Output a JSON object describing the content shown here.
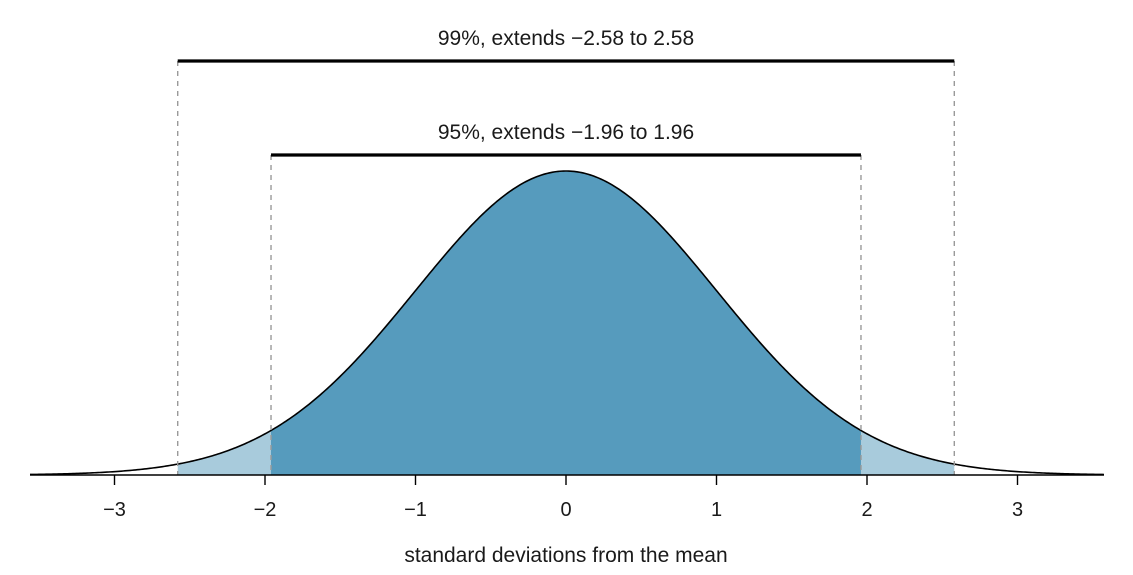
{
  "chart_data": {
    "type": "area",
    "distribution": "standard normal",
    "xlabel": "standard deviations from the mean",
    "xlim": [
      -3.5,
      3.5
    ],
    "xticks": [
      -3,
      -2,
      -1,
      0,
      1,
      2,
      3
    ],
    "tick_labels": [
      "−3",
      "−2",
      "−1",
      "0",
      "1",
      "2",
      "3"
    ],
    "intervals": [
      {
        "label": "99%, extends −2.58 to 2.58",
        "from": -2.58,
        "to": 2.58,
        "color": "#a8cbdc"
      },
      {
        "label": "95%, extends −1.96 to 1.96",
        "from": -1.96,
        "to": 1.96,
        "color": "#569bbd"
      }
    ],
    "curve_color": "#000000",
    "guide_line_color": "#999999"
  }
}
